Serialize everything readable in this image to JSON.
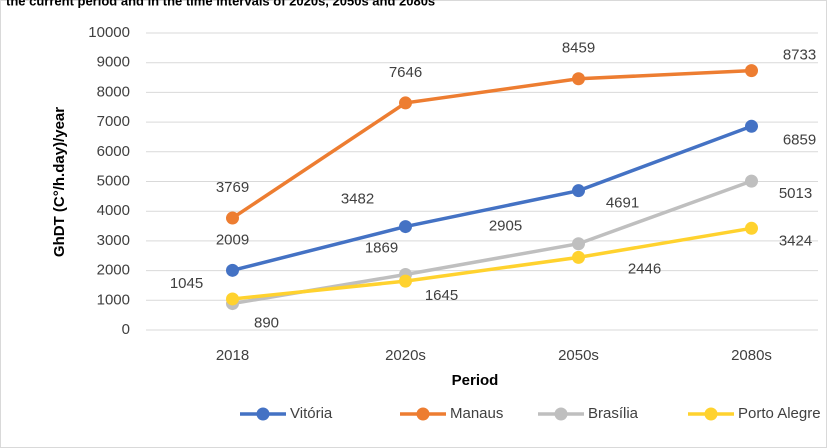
{
  "chart_data": {
    "type": "line",
    "title": "the current period and in the time intervals of 2020s, 2050s and 2080s",
    "x_label": "Period",
    "y_label": "GhDT (C°/h.day)/year",
    "categories": [
      "2018",
      "2020s",
      "2050s",
      "2080s"
    ],
    "series": [
      {
        "name": "Vitória",
        "color": "#4472c4",
        "values": [
          2009,
          3482,
          4691,
          6859
        ]
      },
      {
        "name": "Manaus",
        "color": "#ed7d31",
        "values": [
          3769,
          7646,
          8459,
          8733
        ]
      },
      {
        "name": "Brasília",
        "color": "#bfbfbf",
        "values": [
          890,
          1869,
          2905,
          5013
        ]
      },
      {
        "name": "Porto Alegre",
        "color": "#ffd22e",
        "values": [
          1045,
          1645,
          2446,
          3424
        ]
      }
    ],
    "ylim": [
      0,
      10000
    ],
    "yticks": [
      0,
      1000,
      2000,
      3000,
      4000,
      5000,
      6000,
      7000,
      8000,
      9000,
      10000
    ],
    "grid": true,
    "legend": "bottom"
  }
}
